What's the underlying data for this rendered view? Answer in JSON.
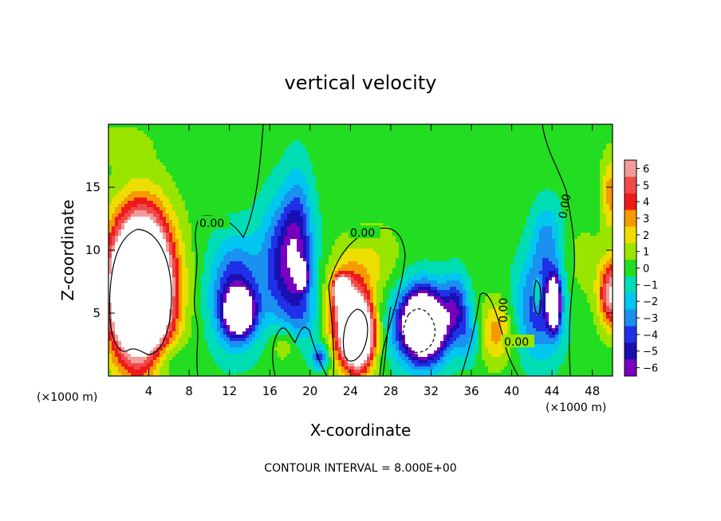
{
  "chart_data": {
    "type": "heatmap",
    "title": "vertical velocity",
    "xlabel": "X-coordinate",
    "ylabel": "Z-coordinate",
    "x_unit_left": "(×1000 m)",
    "x_unit_right": "(×1000 m)",
    "footer": "CONTOUR INTERVAL = 8.000E+00",
    "xlim": [
      0,
      50
    ],
    "ylim": [
      0,
      20
    ],
    "x_ticks": [
      4,
      8,
      12,
      16,
      20,
      24,
      28,
      32,
      36,
      40,
      44,
      48
    ],
    "y_ticks": [
      5,
      10,
      15
    ],
    "colorbar": {
      "labels": [
        "6",
        "5",
        "4",
        "3",
        "2",
        "1",
        "0",
        "−1",
        "−2",
        "−3",
        "−4",
        "−5",
        "−6"
      ],
      "colors": [
        "#f39a9a",
        "#f04a4a",
        "#ee1a1a",
        "#f59a00",
        "#eedd00",
        "#9ae500",
        "#22dd22",
        "#00ddb5",
        "#00c6f0",
        "#1a90f0",
        "#2030e8",
        "#1a0fb0",
        "#7a00c0"
      ]
    },
    "contour_labels": [
      "0.00",
      "0.00",
      "0.00",
      "0.00",
      "0.00"
    ],
    "features": [
      {
        "x": 3.2,
        "z": 7.0,
        "value": 8,
        "sx": 3.2,
        "sz": 6.0
      },
      {
        "x": 3.2,
        "z": 7.0,
        "value": 14,
        "sx": 2.6,
        "sz": 4.8
      },
      {
        "x": 5.5,
        "z": 1.3,
        "value": -2,
        "sx": 2.0,
        "sz": 1.5
      },
      {
        "x": 1.0,
        "z": 18.5,
        "value": 1,
        "sx": 3.0,
        "sz": 1.5
      },
      {
        "x": 12.5,
        "z": 6.5,
        "value": -5,
        "sx": 2.4,
        "sz": 4.2
      },
      {
        "x": 13.0,
        "z": 5.0,
        "value": -9,
        "sx": 1.4,
        "sz": 1.7
      },
      {
        "x": 17.5,
        "z": 9.0,
        "value": -5,
        "sx": 2.4,
        "sz": 5.0
      },
      {
        "x": 18.8,
        "z": 11.0,
        "value": -3,
        "sx": 1.4,
        "sz": 5.5
      },
      {
        "x": 19.2,
        "z": 8.0,
        "value": -9,
        "sx": 0.5,
        "sz": 0.9
      },
      {
        "x": 17.5,
        "z": 2.5,
        "value": 2,
        "sx": 1.5,
        "sz": 1.5
      },
      {
        "x": 19.5,
        "z": 4.5,
        "value": -1.5,
        "sx": 1.8,
        "sz": 2.5
      },
      {
        "x": 21.0,
        "z": 1.5,
        "value": -4,
        "sx": 0.8,
        "sz": 1.0
      },
      {
        "x": 23.7,
        "z": 5.0,
        "value": 6,
        "sx": 2.0,
        "sz": 3.8
      },
      {
        "x": 24.8,
        "z": 3.2,
        "value": 12,
        "sx": 1.5,
        "sz": 2.6
      },
      {
        "x": 23.1,
        "z": 6.8,
        "value": 10,
        "sx": 0.7,
        "sz": 1.0
      },
      {
        "x": 26.5,
        "z": 9.0,
        "value": 1.5,
        "sx": 2.5,
        "sz": 3.0
      },
      {
        "x": 31.0,
        "z": 4.2,
        "value": -5,
        "sx": 3.0,
        "sz": 3.2
      },
      {
        "x": 31.3,
        "z": 4.0,
        "value": -10,
        "sx": 2.0,
        "sz": 2.5
      },
      {
        "x": 34.5,
        "z": 5.5,
        "value": -4,
        "sx": 1.2,
        "sz": 2.5
      },
      {
        "x": 35.8,
        "z": 3.0,
        "value": -2,
        "sx": 1.0,
        "sz": 2.0
      },
      {
        "x": 38.5,
        "z": 3.5,
        "value": 3,
        "sx": 1.6,
        "sz": 2.5
      },
      {
        "x": 42.8,
        "z": 5.5,
        "value": -4.5,
        "sx": 2.3,
        "sz": 4.0
      },
      {
        "x": 43.5,
        "z": 11.0,
        "value": -2.5,
        "sx": 1.5,
        "sz": 3.0
      },
      {
        "x": 42.5,
        "z": 6.5,
        "value": 4,
        "sx": 0.35,
        "sz": 1.3
      },
      {
        "x": 44.2,
        "z": 5.8,
        "value": -10,
        "sx": 0.6,
        "sz": 2.0
      },
      {
        "x": 47.0,
        "z": 9.0,
        "value": 1,
        "sx": 2.0,
        "sz": 3.0
      },
      {
        "x": 50.0,
        "z": 6.5,
        "value": 7,
        "sx": 1.3,
        "sz": 2.6
      },
      {
        "x": 49.8,
        "z": 14.5,
        "value": 3,
        "sx": 0.9,
        "sz": 3.0
      }
    ]
  }
}
